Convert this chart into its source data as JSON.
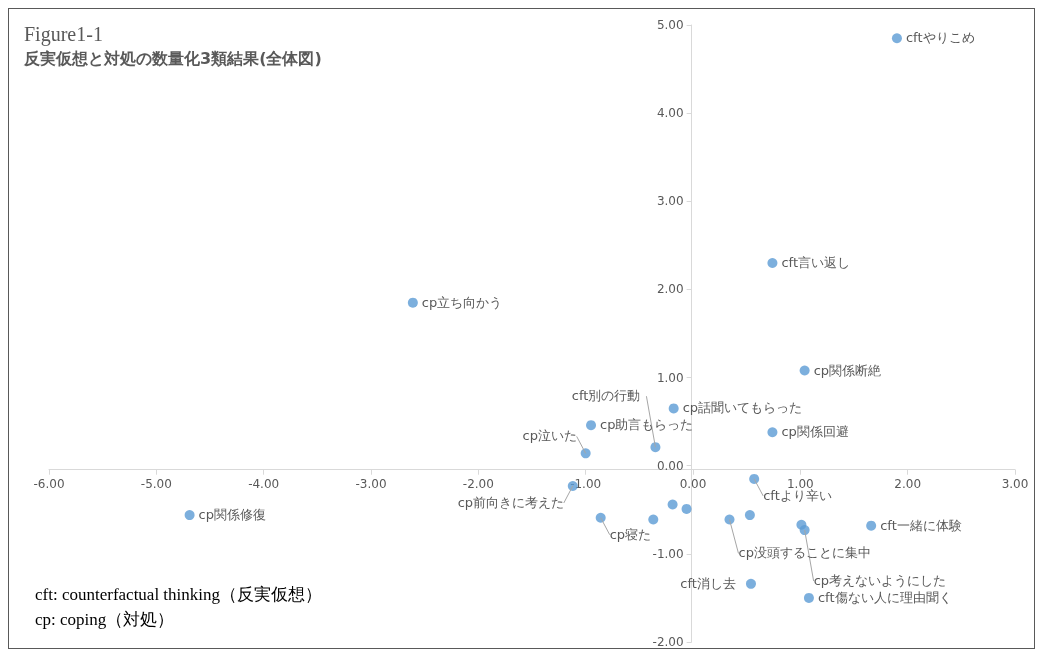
{
  "chart_data": {
    "type": "scatter",
    "title": "Figure1-1",
    "subtitle": "反実仮想と対処の数量化3類結果(全体図)",
    "x": [
      1.9,
      0.74,
      -2.61,
      1.04,
      -0.18,
      -0.95,
      0.74,
      -1.0,
      -0.35,
      -1.12,
      0.57,
      -4.69,
      -0.86,
      -0.37,
      -0.19,
      -0.06,
      0.34,
      0.53,
      1.01,
      1.04,
      1.66,
      0.54,
      1.08
    ],
    "values": [
      4.85,
      2.3,
      1.85,
      1.08,
      0.65,
      0.46,
      0.38,
      0.14,
      0.21,
      -0.23,
      -0.15,
      -0.56,
      -0.59,
      -0.61,
      -0.44,
      -0.49,
      -0.61,
      -0.56,
      -0.67,
      -0.73,
      -0.68,
      -1.34,
      -1.5
    ],
    "color": "#5b9bd5",
    "marker": "circle",
    "grid": false,
    "xlim": [
      -6,
      3
    ],
    "xticks": [
      {
        "value": -6,
        "label": "-6.00"
      },
      {
        "value": -5,
        "label": "-5.00"
      },
      {
        "value": -4,
        "label": "-4.00"
      },
      {
        "value": -3,
        "label": "-3.00"
      },
      {
        "value": -2,
        "label": "-2.00"
      },
      {
        "value": -1,
        "label": "-1.00"
      },
      {
        "value": 0,
        "label": "0.00"
      },
      {
        "value": 1,
        "label": "1.00"
      },
      {
        "value": 2,
        "label": "2.00"
      },
      {
        "value": 3,
        "label": "3.00"
      }
    ],
    "ylim": [
      -2,
      5
    ],
    "yticks": [
      {
        "value": -2,
        "label": "-2.00"
      },
      {
        "value": -1,
        "label": "-1.00"
      },
      {
        "value": 0,
        "label": "0.00"
      },
      {
        "value": 1,
        "label": "1.00"
      },
      {
        "value": 2,
        "label": "2.00"
      },
      {
        "value": 3,
        "label": "3.00"
      },
      {
        "value": 4,
        "label": "4.00"
      },
      {
        "value": 5,
        "label": "5.00"
      }
    ],
    "annotations": [
      {
        "text": "cftやりこめ",
        "x": 1.9,
        "y": 4.85
      },
      {
        "text": "cft言い返し",
        "x": 0.74,
        "y": 2.3
      },
      {
        "text": "cp立ち向かう",
        "x": -2.61,
        "y": 1.85
      },
      {
        "text": "cp関係断絶",
        "x": 1.04,
        "y": 1.08
      },
      {
        "text": "cp話聞いてもらった",
        "x": -0.18,
        "y": 0.65
      },
      {
        "text": "cp助言もらった",
        "x": -0.95,
        "y": 0.46
      },
      {
        "text": "cp関係回避",
        "x": 0.74,
        "y": 0.38
      },
      {
        "text": "cp泣いた",
        "x": -1.0,
        "y": 0.14
      },
      {
        "text": "cft別の行動",
        "x": -0.35,
        "y": 0.21
      },
      {
        "text": "cp前向きに考えた",
        "x": -1.12,
        "y": -0.23
      },
      {
        "text": "cftより辛い",
        "x": 0.57,
        "y": -0.15
      },
      {
        "text": "cp関係修復",
        "x": -4.69,
        "y": -0.56
      },
      {
        "text": "cp寝た",
        "x": -0.86,
        "y": -0.59
      },
      {
        "text": "cp没頭することに集中",
        "x": 0.34,
        "y": -0.61
      },
      {
        "text": "cp考えないようにした",
        "x": 1.04,
        "y": -0.73
      },
      {
        "text": "cft一緒に体験",
        "x": 1.66,
        "y": -0.68
      },
      {
        "text": "cft消し去",
        "x": 0.54,
        "y": -1.34
      },
      {
        "text": "cft傷ない人に理由聞く",
        "x": 1.08,
        "y": -1.5
      },
      "cft: counterfactual thinking（反実仮想）",
      "cp: coping（対処）"
    ]
  }
}
